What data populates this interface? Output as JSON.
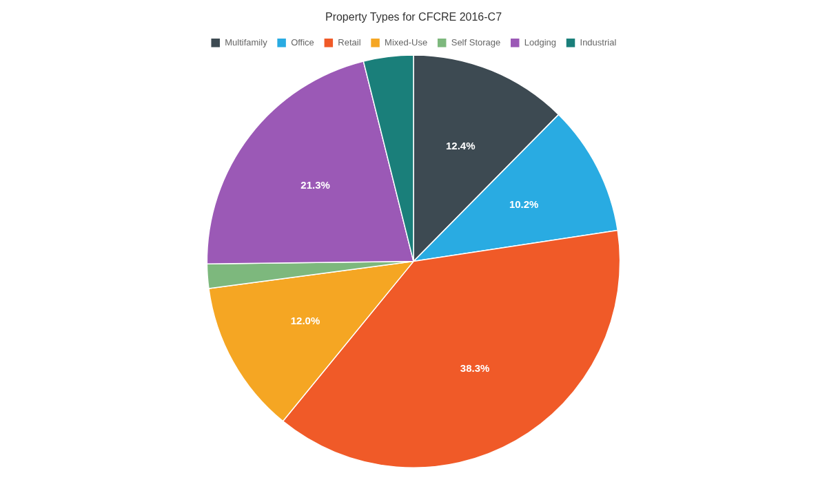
{
  "chart_data": {
    "type": "pie",
    "title": "Property Types for CFCRE 2016-C7",
    "categories": [
      "Multifamily",
      "Office",
      "Retail",
      "Mixed-Use",
      "Self Storage",
      "Lodging",
      "Industrial"
    ],
    "values": [
      12.4,
      10.2,
      38.3,
      12.0,
      1.9,
      21.3,
      3.9
    ],
    "colors": [
      "#3d4a52",
      "#29abe2",
      "#f05a28",
      "#f5a623",
      "#7db87d",
      "#9b59b6",
      "#1a7f7a"
    ],
    "data_labels": true,
    "value_labels": [
      "12.4%",
      "10.2%",
      "38.3%",
      "12.0%",
      null,
      "21.3%",
      null
    ],
    "legend": "top"
  }
}
